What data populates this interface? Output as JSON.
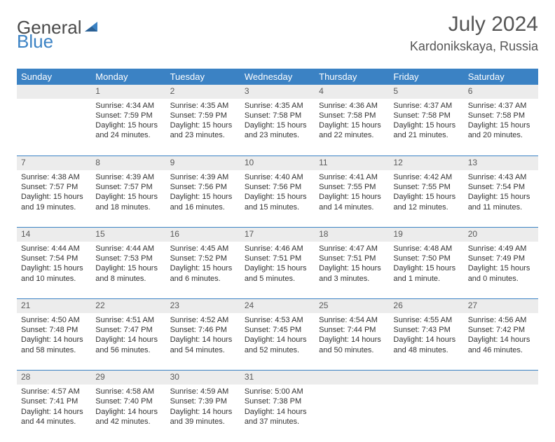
{
  "logo": {
    "word1": "General",
    "word2": "Blue"
  },
  "title": "July 2024",
  "location": "Kardonikskaya, Russia",
  "weekdays": [
    "Sunday",
    "Monday",
    "Tuesday",
    "Wednesday",
    "Thursday",
    "Friday",
    "Saturday"
  ],
  "colors": {
    "header_bg": "#3b82c4",
    "header_text": "#ffffff",
    "daynum_bg": "#ececec",
    "border": "#3b82c4",
    "text": "#333333",
    "title_text": "#555555"
  },
  "weeks": [
    [
      {
        "num": "",
        "lines": []
      },
      {
        "num": "1",
        "lines": [
          "Sunrise: 4:34 AM",
          "Sunset: 7:59 PM",
          "Daylight: 15 hours",
          "and 24 minutes."
        ]
      },
      {
        "num": "2",
        "lines": [
          "Sunrise: 4:35 AM",
          "Sunset: 7:59 PM",
          "Daylight: 15 hours",
          "and 23 minutes."
        ]
      },
      {
        "num": "3",
        "lines": [
          "Sunrise: 4:35 AM",
          "Sunset: 7:58 PM",
          "Daylight: 15 hours",
          "and 23 minutes."
        ]
      },
      {
        "num": "4",
        "lines": [
          "Sunrise: 4:36 AM",
          "Sunset: 7:58 PM",
          "Daylight: 15 hours",
          "and 22 minutes."
        ]
      },
      {
        "num": "5",
        "lines": [
          "Sunrise: 4:37 AM",
          "Sunset: 7:58 PM",
          "Daylight: 15 hours",
          "and 21 minutes."
        ]
      },
      {
        "num": "6",
        "lines": [
          "Sunrise: 4:37 AM",
          "Sunset: 7:58 PM",
          "Daylight: 15 hours",
          "and 20 minutes."
        ]
      }
    ],
    [
      {
        "num": "7",
        "lines": [
          "Sunrise: 4:38 AM",
          "Sunset: 7:57 PM",
          "Daylight: 15 hours",
          "and 19 minutes."
        ]
      },
      {
        "num": "8",
        "lines": [
          "Sunrise: 4:39 AM",
          "Sunset: 7:57 PM",
          "Daylight: 15 hours",
          "and 18 minutes."
        ]
      },
      {
        "num": "9",
        "lines": [
          "Sunrise: 4:39 AM",
          "Sunset: 7:56 PM",
          "Daylight: 15 hours",
          "and 16 minutes."
        ]
      },
      {
        "num": "10",
        "lines": [
          "Sunrise: 4:40 AM",
          "Sunset: 7:56 PM",
          "Daylight: 15 hours",
          "and 15 minutes."
        ]
      },
      {
        "num": "11",
        "lines": [
          "Sunrise: 4:41 AM",
          "Sunset: 7:55 PM",
          "Daylight: 15 hours",
          "and 14 minutes."
        ]
      },
      {
        "num": "12",
        "lines": [
          "Sunrise: 4:42 AM",
          "Sunset: 7:55 PM",
          "Daylight: 15 hours",
          "and 12 minutes."
        ]
      },
      {
        "num": "13",
        "lines": [
          "Sunrise: 4:43 AM",
          "Sunset: 7:54 PM",
          "Daylight: 15 hours",
          "and 11 minutes."
        ]
      }
    ],
    [
      {
        "num": "14",
        "lines": [
          "Sunrise: 4:44 AM",
          "Sunset: 7:54 PM",
          "Daylight: 15 hours",
          "and 10 minutes."
        ]
      },
      {
        "num": "15",
        "lines": [
          "Sunrise: 4:44 AM",
          "Sunset: 7:53 PM",
          "Daylight: 15 hours",
          "and 8 minutes."
        ]
      },
      {
        "num": "16",
        "lines": [
          "Sunrise: 4:45 AM",
          "Sunset: 7:52 PM",
          "Daylight: 15 hours",
          "and 6 minutes."
        ]
      },
      {
        "num": "17",
        "lines": [
          "Sunrise: 4:46 AM",
          "Sunset: 7:51 PM",
          "Daylight: 15 hours",
          "and 5 minutes."
        ]
      },
      {
        "num": "18",
        "lines": [
          "Sunrise: 4:47 AM",
          "Sunset: 7:51 PM",
          "Daylight: 15 hours",
          "and 3 minutes."
        ]
      },
      {
        "num": "19",
        "lines": [
          "Sunrise: 4:48 AM",
          "Sunset: 7:50 PM",
          "Daylight: 15 hours",
          "and 1 minute."
        ]
      },
      {
        "num": "20",
        "lines": [
          "Sunrise: 4:49 AM",
          "Sunset: 7:49 PM",
          "Daylight: 15 hours",
          "and 0 minutes."
        ]
      }
    ],
    [
      {
        "num": "21",
        "lines": [
          "Sunrise: 4:50 AM",
          "Sunset: 7:48 PM",
          "Daylight: 14 hours",
          "and 58 minutes."
        ]
      },
      {
        "num": "22",
        "lines": [
          "Sunrise: 4:51 AM",
          "Sunset: 7:47 PM",
          "Daylight: 14 hours",
          "and 56 minutes."
        ]
      },
      {
        "num": "23",
        "lines": [
          "Sunrise: 4:52 AM",
          "Sunset: 7:46 PM",
          "Daylight: 14 hours",
          "and 54 minutes."
        ]
      },
      {
        "num": "24",
        "lines": [
          "Sunrise: 4:53 AM",
          "Sunset: 7:45 PM",
          "Daylight: 14 hours",
          "and 52 minutes."
        ]
      },
      {
        "num": "25",
        "lines": [
          "Sunrise: 4:54 AM",
          "Sunset: 7:44 PM",
          "Daylight: 14 hours",
          "and 50 minutes."
        ]
      },
      {
        "num": "26",
        "lines": [
          "Sunrise: 4:55 AM",
          "Sunset: 7:43 PM",
          "Daylight: 14 hours",
          "and 48 minutes."
        ]
      },
      {
        "num": "27",
        "lines": [
          "Sunrise: 4:56 AM",
          "Sunset: 7:42 PM",
          "Daylight: 14 hours",
          "and 46 minutes."
        ]
      }
    ],
    [
      {
        "num": "28",
        "lines": [
          "Sunrise: 4:57 AM",
          "Sunset: 7:41 PM",
          "Daylight: 14 hours",
          "and 44 minutes."
        ]
      },
      {
        "num": "29",
        "lines": [
          "Sunrise: 4:58 AM",
          "Sunset: 7:40 PM",
          "Daylight: 14 hours",
          "and 42 minutes."
        ]
      },
      {
        "num": "30",
        "lines": [
          "Sunrise: 4:59 AM",
          "Sunset: 7:39 PM",
          "Daylight: 14 hours",
          "and 39 minutes."
        ]
      },
      {
        "num": "31",
        "lines": [
          "Sunrise: 5:00 AM",
          "Sunset: 7:38 PM",
          "Daylight: 14 hours",
          "and 37 minutes."
        ]
      },
      {
        "num": "",
        "lines": []
      },
      {
        "num": "",
        "lines": []
      },
      {
        "num": "",
        "lines": []
      }
    ]
  ]
}
